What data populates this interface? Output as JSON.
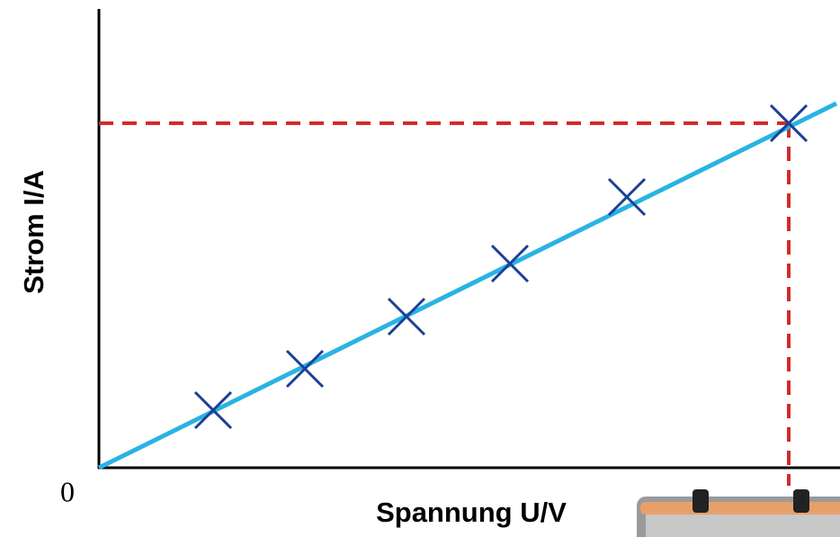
{
  "chart_data": {
    "type": "scatter",
    "x_label": "Spannung U/V",
    "y_label": "Strom I/A",
    "xlim": [
      0,
      8.24
    ],
    "ylim": [
      0,
      5.1
    ],
    "xticks": [
      0
    ],
    "series": [
      {
        "color": "#1b3f94",
        "marker": "x",
        "x": [
          1.27,
          2.29,
          3.42,
          4.57,
          5.87,
          7.67
        ],
        "values": [
          0.64,
          1.1,
          1.68,
          2.27,
          3.01,
          3.83
        ]
      },
      {
        "color": "#29b3e3",
        "marker": "line",
        "x": [
          0,
          8.2
        ],
        "values": [
          0,
          4.05
        ]
      }
    ],
    "reference": {
      "x": 7.67,
      "y": 3.83,
      "color": "#d42a2a"
    }
  }
}
